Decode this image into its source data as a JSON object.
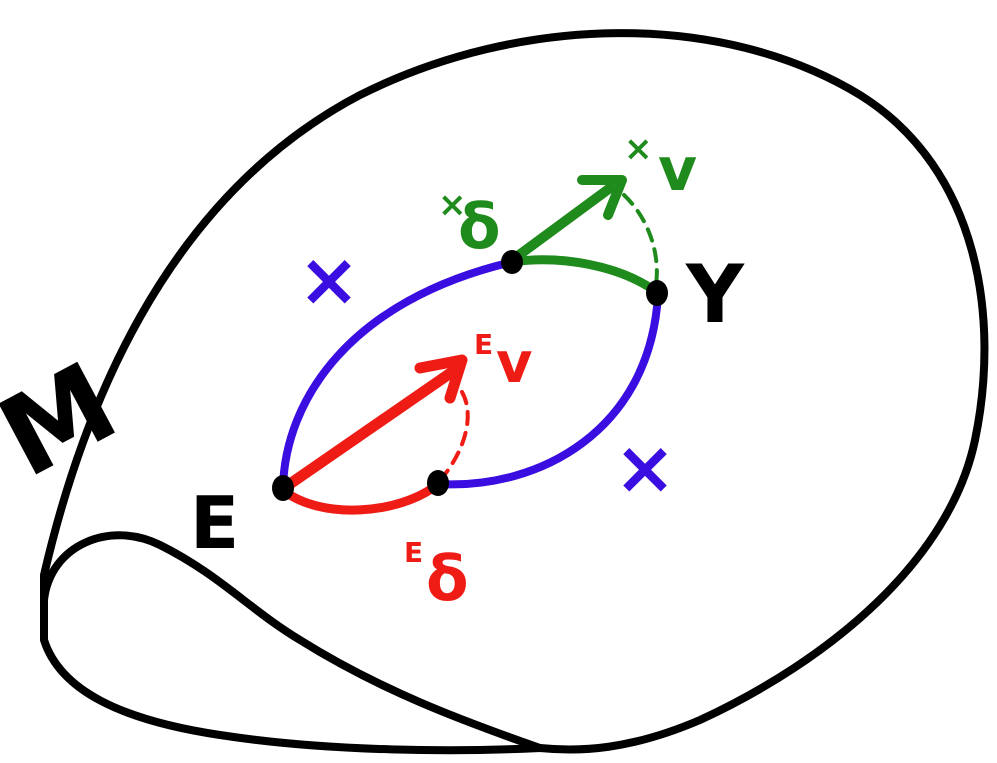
{
  "colors": {
    "outline": "#000000",
    "blue": "#3a0de0",
    "red": "#ee1c14",
    "green": "#1f8b1c",
    "background": "#ffffff"
  },
  "labels": {
    "manifold": "M",
    "point_e": "E",
    "point_y": "Y",
    "blue_x_upper": "×",
    "blue_x_lower": "×",
    "red_v": "v",
    "red_v_sup": "E",
    "red_delta": "δ",
    "red_delta_sup": "E",
    "green_v": "v",
    "green_v_sup": "×",
    "green_delta": "δ",
    "green_delta_sup": "×"
  }
}
